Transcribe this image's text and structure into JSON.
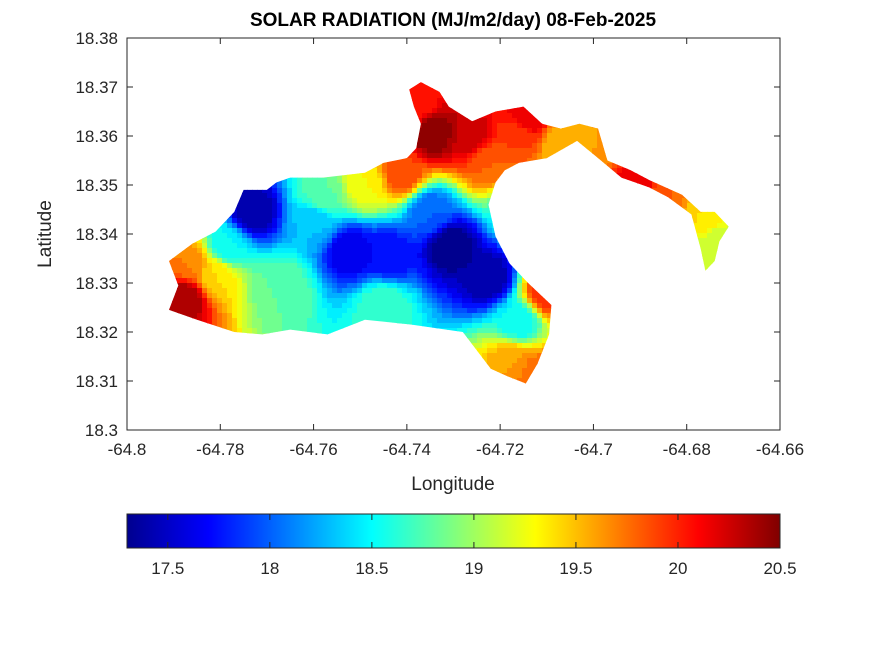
{
  "chart_data": {
    "type": "heatmap",
    "title": "SOLAR RADIATION (MJ/m2/day) 08-Feb-2025",
    "xlabel": "Longitude",
    "ylabel": "Latitude",
    "xlim": [
      -64.8,
      -64.66
    ],
    "ylim": [
      18.3,
      18.38
    ],
    "xticks": [
      -64.8,
      -64.78,
      -64.76,
      -64.74,
      -64.72,
      -64.7,
      -64.68,
      -64.66
    ],
    "yticks": [
      18.3,
      18.31,
      18.32,
      18.33,
      18.34,
      18.35,
      18.36,
      18.37,
      18.38
    ],
    "xtick_labels": [
      "-64.8",
      "-64.78",
      "-64.76",
      "-64.74",
      "-64.72",
      "-64.7",
      "-64.68",
      "-64.66"
    ],
    "ytick_labels": [
      "18.3",
      "18.31",
      "18.32",
      "18.33",
      "18.34",
      "18.35",
      "18.36",
      "18.37",
      "18.38"
    ],
    "colormap": "jet",
    "colorbar": {
      "orientation": "horizontal",
      "location": "bottom",
      "clim": [
        17.3,
        20.5
      ],
      "ticks": [
        17.5,
        18,
        18.5,
        19,
        19.5,
        20,
        20.5
      ],
      "tick_labels": [
        "17.5",
        "18",
        "18.5",
        "19",
        "19.5",
        "20",
        "20.5"
      ]
    },
    "land_outline": [
      [
        -64.791,
        18.3245
      ],
      [
        -64.789,
        18.3295
      ],
      [
        -64.791,
        18.3345
      ],
      [
        -64.786,
        18.338
      ],
      [
        -64.781,
        18.3405
      ],
      [
        -64.777,
        18.3445
      ],
      [
        -64.775,
        18.349
      ],
      [
        -64.77,
        18.349
      ],
      [
        -64.768,
        18.3505
      ],
      [
        -64.765,
        18.3515
      ],
      [
        -64.758,
        18.3515
      ],
      [
        -64.749,
        18.3525
      ],
      [
        -64.745,
        18.3545
      ],
      [
        -64.74,
        18.3555
      ],
      [
        -64.738,
        18.3575
      ],
      [
        -64.737,
        18.3625
      ],
      [
        -64.7385,
        18.366
      ],
      [
        -64.7395,
        18.3695
      ],
      [
        -64.737,
        18.371
      ],
      [
        -64.733,
        18.369
      ],
      [
        -64.731,
        18.366
      ],
      [
        -64.726,
        18.363
      ],
      [
        -64.721,
        18.365
      ],
      [
        -64.715,
        18.366
      ],
      [
        -64.711,
        18.3625
      ],
      [
        -64.707,
        18.3615
      ],
      [
        -64.703,
        18.3625
      ],
      [
        -64.699,
        18.3615
      ],
      [
        -64.697,
        18.355
      ],
      [
        -64.692,
        18.353
      ],
      [
        -64.688,
        18.351
      ],
      [
        -64.681,
        18.348
      ],
      [
        -64.677,
        18.3445
      ],
      [
        -64.674,
        18.3445
      ],
      [
        -64.671,
        18.3415
      ],
      [
        -64.673,
        18.3385
      ],
      [
        -64.674,
        18.3345
      ],
      [
        -64.676,
        18.3325
      ],
      [
        -64.677,
        18.337
      ],
      [
        -64.679,
        18.344
      ],
      [
        -64.684,
        18.3475
      ],
      [
        -64.688,
        18.3495
      ],
      [
        -64.694,
        18.3515
      ],
      [
        -64.699,
        18.3555
      ],
      [
        -64.7035,
        18.359
      ],
      [
        -64.71,
        18.3555
      ],
      [
        -64.716,
        18.3545
      ],
      [
        -64.719,
        18.353
      ],
      [
        -64.721,
        18.3505
      ],
      [
        -64.7225,
        18.346
      ],
      [
        -64.721,
        18.3395
      ],
      [
        -64.718,
        18.334
      ],
      [
        -64.714,
        18.33
      ],
      [
        -64.709,
        18.3255
      ],
      [
        -64.7095,
        18.3195
      ],
      [
        -64.712,
        18.3135
      ],
      [
        -64.7145,
        18.3095
      ],
      [
        -64.7185,
        18.311
      ],
      [
        -64.722,
        18.3125
      ],
      [
        -64.728,
        18.32
      ],
      [
        -64.739,
        18.3215
      ],
      [
        -64.749,
        18.3225
      ],
      [
        -64.757,
        18.3195
      ],
      [
        -64.765,
        18.3205
      ],
      [
        -64.771,
        18.3195
      ],
      [
        -64.777,
        18.32
      ],
      [
        -64.785,
        18.3225
      ]
    ],
    "field_samples": [
      {
        "lon": -64.773,
        "lat": 18.3445,
        "value": 17.4
      },
      {
        "lon": -64.76,
        "lat": 18.3425,
        "value": 18.3
      },
      {
        "lon": -64.752,
        "lat": 18.3365,
        "value": 17.6
      },
      {
        "lon": -64.744,
        "lat": 18.3355,
        "value": 17.7
      },
      {
        "lon": -64.7305,
        "lat": 18.3375,
        "value": 17.3
      },
      {
        "lon": -64.7225,
        "lat": 18.331,
        "value": 17.4
      },
      {
        "lon": -64.735,
        "lat": 18.3445,
        "value": 18.0
      },
      {
        "lon": -64.716,
        "lat": 18.322,
        "value": 18.5
      },
      {
        "lon": -64.7785,
        "lat": 18.3375,
        "value": 18.5
      },
      {
        "lon": -64.781,
        "lat": 18.3315,
        "value": 19.4
      },
      {
        "lon": -64.7875,
        "lat": 18.327,
        "value": 20.4
      },
      {
        "lon": -64.7865,
        "lat": 18.334,
        "value": 19.7
      },
      {
        "lon": -64.767,
        "lat": 18.329,
        "value": 18.8
      },
      {
        "lon": -64.745,
        "lat": 18.3255,
        "value": 18.7
      },
      {
        "lon": -64.758,
        "lat": 18.348,
        "value": 18.8
      },
      {
        "lon": -64.749,
        "lat": 18.35,
        "value": 19.3
      },
      {
        "lon": -64.741,
        "lat": 18.3525,
        "value": 19.9
      },
      {
        "lon": -64.7345,
        "lat": 18.3605,
        "value": 20.5
      },
      {
        "lon": -64.738,
        "lat": 18.3665,
        "value": 20.0
      },
      {
        "lon": -64.7265,
        "lat": 18.36,
        "value": 20.3
      },
      {
        "lon": -64.7225,
        "lat": 18.3545,
        "value": 19.8
      },
      {
        "lon": -64.716,
        "lat": 18.36,
        "value": 19.9
      },
      {
        "lon": -64.714,
        "lat": 18.3635,
        "value": 20.2
      },
      {
        "lon": -64.707,
        "lat": 18.3585,
        "value": 19.5
      },
      {
        "lon": -64.7,
        "lat": 18.3585,
        "value": 19.6
      },
      {
        "lon": -64.691,
        "lat": 18.349,
        "value": 20.2
      },
      {
        "lon": -64.6845,
        "lat": 18.3475,
        "value": 19.8
      },
      {
        "lon": -64.676,
        "lat": 18.344,
        "value": 19.4
      },
      {
        "lon": -64.673,
        "lat": 18.338,
        "value": 19.1
      },
      {
        "lon": -64.7175,
        "lat": 18.314,
        "value": 19.6
      },
      {
        "lon": -64.7125,
        "lat": 18.3115,
        "value": 19.8
      },
      {
        "lon": -64.71,
        "lat": 18.328,
        "value": 20.0
      },
      {
        "lon": -64.7165,
        "lat": 18.3455,
        "value": 18.6
      }
    ]
  }
}
